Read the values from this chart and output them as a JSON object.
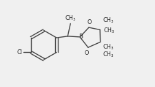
{
  "bg_color": "#f0f0f0",
  "line_color": "#444444",
  "text_color": "#222222",
  "line_width": 1.0,
  "font_size": 5.8,
  "figure_width": 2.26,
  "figure_height": 1.27,
  "dpi": 100,
  "xlim": [
    0,
    10
  ],
  "ylim": [
    0,
    5.6
  ]
}
